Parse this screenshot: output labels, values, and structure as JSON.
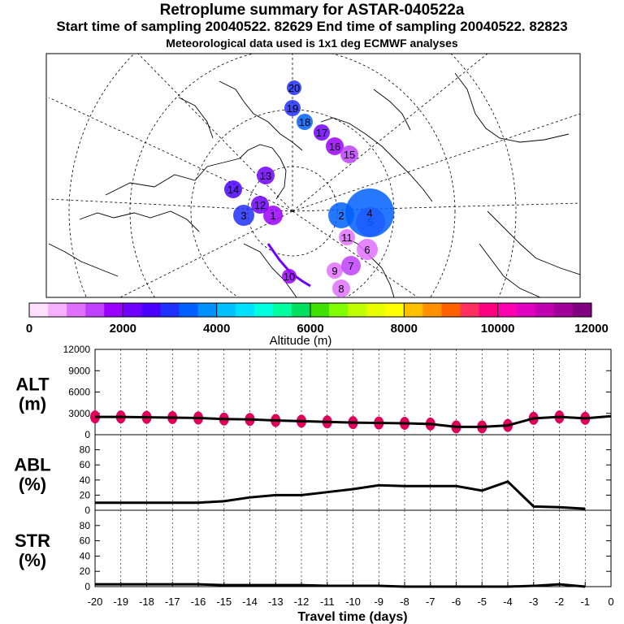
{
  "title": "Retroplume summary for ASTAR-040522a",
  "subtitle": "Start time of sampling 20040522. 82629     End time of sampling 20040522. 82823",
  "subtitle2": "Meteorological data used is 1x1 deg ECMWF analyses",
  "colors": {
    "line": "#000000",
    "marker": "#e0005a",
    "scale": [
      "#ffe0ff",
      "#f5b0ff",
      "#e070ff",
      "#c040ff",
      "#9a00ff",
      "#7000ff",
      "#4a00ff",
      "#2030ff",
      "#0060ff",
      "#0090ff",
      "#00c0ff",
      "#00e0ff",
      "#00ffe0",
      "#00ffa0",
      "#00e060",
      "#40e000",
      "#80ff00",
      "#c0ff00",
      "#e8ff00",
      "#ffff00",
      "#ffc000",
      "#ff9000",
      "#ff6000",
      "#ff3060",
      "#ff0080",
      "#ff00b0",
      "#e000c0",
      "#c000b0",
      "#a00098",
      "#800080"
    ]
  },
  "chart_data": [
    {
      "type": "map",
      "title": "Retroplume cluster centroids (days before sampling)",
      "color_scale": {
        "label": "Altitude (m)",
        "tick_labels": [
          "0",
          "2000",
          "4000",
          "6000",
          "8000",
          "10000",
          "12000"
        ],
        "min": 0,
        "max": 12000
      },
      "clusters": [
        {
          "label": "20",
          "color": "#2030ff"
        },
        {
          "label": "19",
          "color": "#2030ff"
        },
        {
          "label": "18",
          "color": "#0060ff"
        },
        {
          "label": "17",
          "color": "#7000ff"
        },
        {
          "label": "16",
          "color": "#9a00ff"
        },
        {
          "label": "15",
          "color": "#c040ff"
        },
        {
          "label": "14",
          "color": "#4a00ff"
        },
        {
          "label": "13",
          "color": "#7000ff"
        },
        {
          "label": "12",
          "color": "#7000ff"
        },
        {
          "label": "11",
          "color": "#e070ff"
        },
        {
          "label": "10",
          "color": "#9a00ff"
        },
        {
          "label": "9",
          "color": "#e070ff"
        },
        {
          "label": "8",
          "color": "#e070ff"
        },
        {
          "label": "7",
          "color": "#c040ff"
        },
        {
          "label": "6",
          "color": "#e070ff"
        },
        {
          "label": "5",
          "color": "#c040ff"
        },
        {
          "label": "4",
          "color": "#0060ff"
        },
        {
          "label": "3",
          "color": "#2030ff"
        },
        {
          "label": "2",
          "color": "#0060ff"
        },
        {
          "label": "1",
          "color": "#9a00ff"
        }
      ]
    },
    {
      "type": "line",
      "panel": "ALT",
      "ylabel": "ALT\n(m)",
      "ylim": [
        0,
        12000
      ],
      "yticks": [
        0,
        3000,
        6000,
        9000,
        12000
      ],
      "x": [
        -20,
        -19,
        -18,
        -17,
        -16,
        -15,
        -14,
        -13,
        -12,
        -11,
        -10,
        -9,
        -8,
        -7,
        -6,
        -5,
        -4,
        -3,
        -2,
        -1,
        0
      ],
      "values": [
        2500,
        2500,
        2450,
        2400,
        2350,
        2200,
        2150,
        2000,
        1900,
        1800,
        1700,
        1650,
        1600,
        1500,
        1100,
        1100,
        1300,
        2300,
        2500,
        2300,
        2600
      ]
    },
    {
      "type": "line",
      "panel": "ABL",
      "ylabel": "ABL\n(%)",
      "ylim": [
        0,
        100
      ],
      "yticks": [
        0,
        20,
        40,
        60,
        80
      ],
      "x": [
        -20,
        -19,
        -18,
        -17,
        -16,
        -15,
        -14,
        -13,
        -12,
        -11,
        -10,
        -9,
        -8,
        -7,
        -6,
        -5,
        -4,
        -3,
        -2,
        -1
      ],
      "values": [
        10,
        10,
        10,
        10,
        10,
        12,
        17,
        20,
        20,
        24,
        28,
        33,
        32,
        32,
        32,
        26,
        38,
        5,
        4,
        2
      ]
    },
    {
      "type": "line",
      "panel": "STR",
      "ylabel": "STR\n(%)",
      "ylim": [
        0,
        100
      ],
      "yticks": [
        0,
        20,
        40,
        60,
        80
      ],
      "x": [
        -20,
        -19,
        -18,
        -17,
        -16,
        -15,
        -14,
        -13,
        -12,
        -11,
        -10,
        -9,
        -8,
        -7,
        -6,
        -5,
        -4,
        -3,
        -2,
        -1
      ],
      "values": [
        3,
        3,
        3,
        3,
        3,
        2,
        2,
        2,
        2,
        1,
        1,
        1,
        0,
        0,
        0,
        0,
        0,
        1,
        3,
        0
      ]
    }
  ],
  "xaxis": {
    "label": "Travel time (days)",
    "ticks": [
      "-20",
      "-19",
      "-18",
      "-17",
      "-16",
      "-15",
      "-14",
      "-13",
      "-12",
      "-11",
      "-10",
      "-9",
      "-8",
      "-7",
      "-6",
      "-5",
      "-4",
      "-3",
      "-2",
      "-1",
      "0"
    ]
  }
}
